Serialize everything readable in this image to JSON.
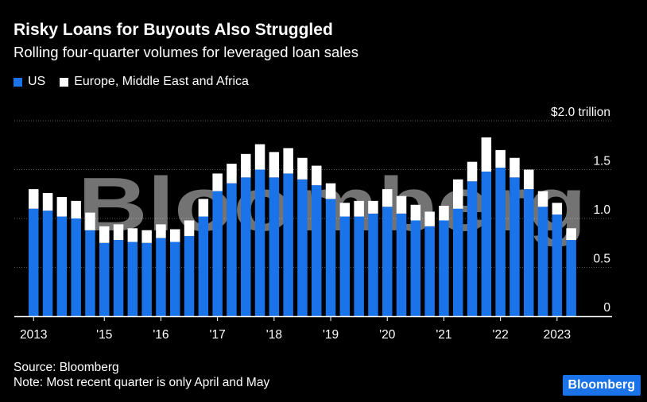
{
  "title": "Risky Loans for Buyouts Also Struggled",
  "subtitle": "Rolling four-quarter volumes for leveraged loan sales",
  "legend": [
    {
      "label": "US",
      "color": "#1a73e8"
    },
    {
      "label": "Europe, Middle East and Africa",
      "color": "#ffffff"
    }
  ],
  "watermark": "Bloomberg",
  "source": "Source: Bloomberg",
  "note": "Note: Most recent quarter is only April and May",
  "brand": "Bloomberg",
  "colors": {
    "us": "#1a73e8",
    "emea": "#ffffff",
    "background": "#000000",
    "badge": "#1a73e8"
  },
  "chart_data": {
    "type": "bar",
    "stacked": true,
    "title": "Risky Loans for Buyouts Also Struggled",
    "ylabel": "$ trillion",
    "ylim": [
      0,
      2.0
    ],
    "yticks": [
      0,
      0.5,
      1.0,
      1.5,
      2.0
    ],
    "ytick_labels": [
      "0",
      "0.5",
      "1.0",
      "1.5",
      "$2.0 trillion"
    ],
    "xtick_labels": [
      {
        "label": "2013",
        "index": 0
      },
      {
        "label": "'15",
        "index": 5
      },
      {
        "label": "'16",
        "index": 9
      },
      {
        "label": "'17",
        "index": 13
      },
      {
        "label": "'18",
        "index": 17
      },
      {
        "label": "'19",
        "index": 21
      },
      {
        "label": "'20",
        "index": 25
      },
      {
        "label": "'21",
        "index": 29
      },
      {
        "label": "'22",
        "index": 33
      },
      {
        "label": "2023",
        "index": 37
      }
    ],
    "series": [
      {
        "name": "US",
        "values": [
          1.1,
          1.08,
          1.02,
          1.0,
          0.88,
          0.75,
          0.78,
          0.76,
          0.75,
          0.8,
          0.76,
          0.82,
          1.02,
          1.28,
          1.36,
          1.42,
          1.5,
          1.42,
          1.46,
          1.4,
          1.34,
          1.2,
          1.02,
          1.02,
          1.05,
          1.12,
          1.05,
          0.98,
          0.92,
          0.98,
          1.1,
          1.38,
          1.48,
          1.52,
          1.42,
          1.3,
          1.12,
          1.04,
          0.78
        ]
      },
      {
        "name": "Europe, Middle East and Africa",
        "values": [
          0.2,
          0.18,
          0.2,
          0.18,
          0.18,
          0.17,
          0.16,
          0.14,
          0.13,
          0.14,
          0.13,
          0.16,
          0.18,
          0.18,
          0.2,
          0.24,
          0.26,
          0.26,
          0.26,
          0.22,
          0.2,
          0.16,
          0.14,
          0.16,
          0.13,
          0.18,
          0.18,
          0.16,
          0.15,
          0.15,
          0.3,
          0.2,
          0.35,
          0.18,
          0.2,
          0.2,
          0.16,
          0.12,
          0.12
        ]
      }
    ],
    "gridlines": true
  }
}
